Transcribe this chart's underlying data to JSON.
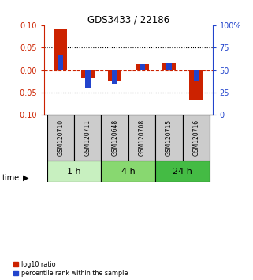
{
  "title": "GDS3433 / 22186",
  "samples": [
    "GSM120710",
    "GSM120711",
    "GSM120648",
    "GSM120708",
    "GSM120715",
    "GSM120716"
  ],
  "log10_ratio": [
    0.091,
    -0.018,
    -0.025,
    0.013,
    0.015,
    -0.065
  ],
  "percentile_rank": [
    66,
    30,
    35,
    57,
    58,
    38
  ],
  "groups": [
    {
      "label": "1 h",
      "indices": [
        0,
        1
      ],
      "color": "#c8f0c0"
    },
    {
      "label": "4 h",
      "indices": [
        2,
        3
      ],
      "color": "#88d870"
    },
    {
      "label": "24 h",
      "indices": [
        4,
        5
      ],
      "color": "#44bb44"
    }
  ],
  "ylim_left": [
    -0.1,
    0.1
  ],
  "ylim_right": [
    0,
    100
  ],
  "yticks_left": [
    -0.1,
    -0.05,
    0,
    0.05,
    0.1
  ],
  "yticks_right": [
    0,
    25,
    50,
    75,
    100
  ],
  "red_color": "#cc2200",
  "blue_color": "#2244cc",
  "zero_line_color": "#cc2200",
  "sample_box_color": "#cccccc",
  "bg_color": "#ffffff",
  "red_bar_width": 0.5,
  "blue_bar_width": 0.2
}
